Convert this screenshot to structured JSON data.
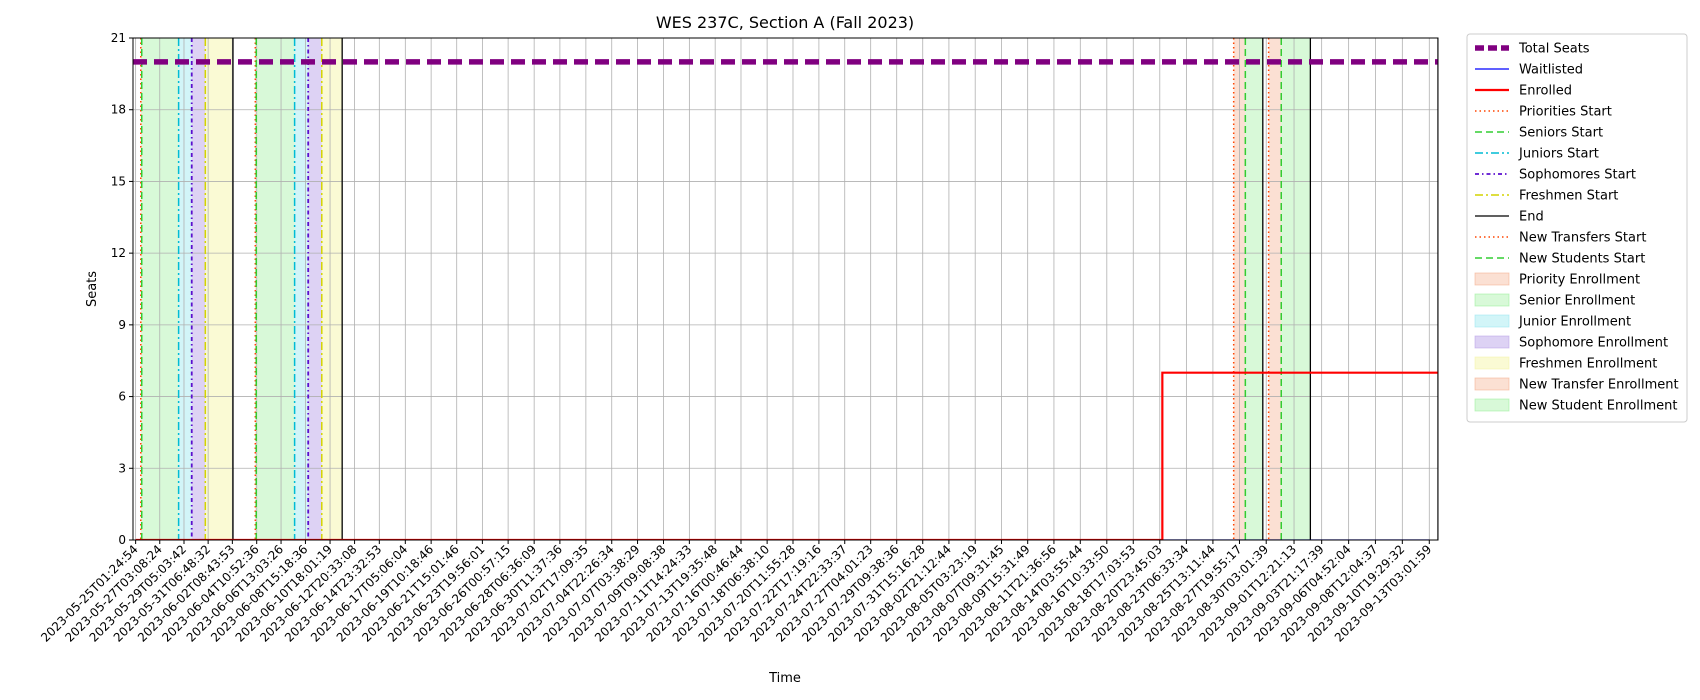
{
  "chart_data": {
    "type": "line",
    "title": "WES 237C, Section A (Fall 2023)",
    "xlabel": "Time",
    "ylabel": "Seats",
    "ylim": [
      0,
      21
    ],
    "yticks": [
      0,
      3,
      6,
      9,
      12,
      15,
      18,
      21
    ],
    "xlim": [
      "2023-05-24T20:00:00",
      "2023-09-13T21:00:00"
    ],
    "xticks": [
      "2023-05-25T01:24:54",
      "2023-05-27T03:08:24",
      "2023-05-29T05:03:42",
      "2023-05-31T06:48:32",
      "2023-06-02T08:43:53",
      "2023-06-04T10:52:36",
      "2023-06-06T13:03:26",
      "2023-06-08T15:18:36",
      "2023-06-10T18:01:19",
      "2023-06-12T20:33:08",
      "2023-06-14T23:32:53",
      "2023-06-17T05:06:04",
      "2023-06-19T10:18:46",
      "2023-06-21T15:01:46",
      "2023-06-23T19:56:01",
      "2023-06-26T00:57:15",
      "2023-06-28T06:36:09",
      "2023-06-30T11:37:36",
      "2023-07-02T17:09:35",
      "2023-07-04T22:26:34",
      "2023-07-07T03:38:29",
      "2023-07-09T09:08:38",
      "2023-07-11T14:24:33",
      "2023-07-13T19:35:48",
      "2023-07-16T00:46:44",
      "2023-07-18T06:38:10",
      "2023-07-20T11:55:28",
      "2023-07-22T17:19:16",
      "2023-07-24T22:33:37",
      "2023-07-27T04:01:23",
      "2023-07-29T09:38:36",
      "2023-07-31T15:16:28",
      "2023-08-02T21:12:44",
      "2023-08-05T03:23:19",
      "2023-08-07T09:31:45",
      "2023-08-09T15:31:49",
      "2023-08-11T21:36:56",
      "2023-08-14T03:55:44",
      "2023-08-16T10:33:50",
      "2023-08-18T17:03:53",
      "2023-08-20T23:45:03",
      "2023-08-23T06:33:34",
      "2023-08-25T13:11:44",
      "2023-08-27T19:55:17",
      "2023-08-30T03:01:39",
      "2023-09-01T12:21:13",
      "2023-09-03T21:17:39",
      "2023-09-06T04:52:04",
      "2023-09-08T12:04:37",
      "2023-09-10T19:29:32",
      "2023-09-13T03:01:59"
    ],
    "grid": true,
    "legend_position": "outside-right",
    "series": [
      {
        "name": "Total Seats",
        "color": "#800080",
        "style": "dashed",
        "x": [
          "2023-05-24T20:00:00",
          "2023-09-13T21:00:00"
        ],
        "y": [
          20,
          20
        ]
      },
      {
        "name": "Waitlisted",
        "color": "#0000ff",
        "style": "solid",
        "x": [
          "2023-05-25T01:24:54",
          "2023-09-13T03:01:59"
        ],
        "y": [
          0,
          0
        ]
      },
      {
        "name": "Enrolled",
        "color": "#ff0000",
        "style": "solid",
        "x": [
          "2023-05-25T01:24:54",
          "2023-08-21T05:00:00",
          "2023-08-21T05:00:00",
          "2023-09-13T21:00:00"
        ],
        "y": [
          0,
          0,
          7,
          7
        ]
      }
    ],
    "vlines": [
      {
        "name": "Priorities Start",
        "color": "#ff4500",
        "style": "dotted",
        "x": [
          "2023-05-25T12:00:00",
          "2023-06-04T08:00:00",
          "2023-08-27T08:00:00"
        ]
      },
      {
        "name": "Seniors Start",
        "color": "#32cd32",
        "style": "dashed",
        "x": [
          "2023-05-25T14:00:00",
          "2023-06-04T10:00:00",
          "2023-08-28T08:00:00"
        ]
      },
      {
        "name": "Juniors Start",
        "color": "#00bcd4",
        "style": "dashdot",
        "x": [
          "2023-05-28T18:00:00",
          "2023-06-07T17:00:00"
        ]
      },
      {
        "name": "Sophomores Start",
        "color": "#5b0fcf",
        "style": "dashdot-dense",
        "x": [
          "2023-05-29T21:00:00",
          "2023-06-08T21:00:00"
        ]
      },
      {
        "name": "Freshmen Start",
        "color": "#d4d400",
        "style": "dashdot",
        "x": [
          "2023-05-31T01:00:00",
          "2023-06-10T01:00:00"
        ]
      },
      {
        "name": "End",
        "color": "#000000",
        "style": "solid",
        "x": [
          "2023-06-02T10:00:00",
          "2023-06-11T19:00:00",
          "2023-08-29T20:00:00",
          "2023-09-02T22:00:00",
          "2023-09-13T21:00:00"
        ]
      },
      {
        "name": "New Transfers Start",
        "color": "#ff4500",
        "style": "dotted",
        "x": [
          "2023-08-30T08:00:00"
        ]
      },
      {
        "name": "New Students Start",
        "color": "#32cd32",
        "style": "dashed",
        "x": [
          "2023-08-31T10:00:00"
        ]
      }
    ],
    "spans": [
      {
        "name": "Priority Enrollment",
        "color": "#f4a582",
        "alpha": 0.35,
        "ranges": [
          [
            "2023-05-25T12:00:00",
            "2023-05-25T14:00:00"
          ],
          [
            "2023-06-04T08:00:00",
            "2023-06-04T10:00:00"
          ],
          [
            "2023-08-27T08:00:00",
            "2023-08-28T08:00:00"
          ]
        ]
      },
      {
        "name": "Senior Enrollment",
        "color": "#90ee90",
        "alpha": 0.35,
        "ranges": [
          [
            "2023-05-25T14:00:00",
            "2023-05-28T18:00:00"
          ],
          [
            "2023-06-04T10:00:00",
            "2023-06-07T17:00:00"
          ],
          [
            "2023-08-28T08:00:00",
            "2023-08-29T20:00:00"
          ]
        ]
      },
      {
        "name": "Junior Enrollment",
        "color": "#8ee5ee",
        "alpha": 0.4,
        "ranges": [
          [
            "2023-05-28T18:00:00",
            "2023-05-29T21:00:00"
          ],
          [
            "2023-06-07T17:00:00",
            "2023-06-08T21:00:00"
          ]
        ]
      },
      {
        "name": "Sophomore Enrollment",
        "color": "#b49be6",
        "alpha": 0.45,
        "ranges": [
          [
            "2023-05-29T21:00:00",
            "2023-05-31T01:00:00"
          ],
          [
            "2023-06-08T21:00:00",
            "2023-06-10T01:00:00"
          ]
        ]
      },
      {
        "name": "Freshmen Enrollment",
        "color": "#f5f5a0",
        "alpha": 0.45,
        "ranges": [
          [
            "2023-05-31T01:00:00",
            "2023-06-02T10:00:00"
          ],
          [
            "2023-06-10T01:00:00",
            "2023-06-11T19:00:00"
          ]
        ]
      },
      {
        "name": "New Transfer Enrollment",
        "color": "#f4a582",
        "alpha": 0.35,
        "ranges": [
          [
            "2023-08-30T08:00:00",
            "2023-08-31T10:00:00"
          ]
        ]
      },
      {
        "name": "New Student Enrollment",
        "color": "#90ee90",
        "alpha": 0.35,
        "ranges": [
          [
            "2023-08-31T10:00:00",
            "2023-09-02T22:00:00"
          ]
        ]
      }
    ],
    "legend": [
      {
        "label": "Total Seats",
        "kind": "line",
        "color": "#800080",
        "style": "dashed-thick"
      },
      {
        "label": "Waitlisted",
        "kind": "line",
        "color": "#0000ff",
        "style": "solid"
      },
      {
        "label": "Enrolled",
        "kind": "line",
        "color": "#ff0000",
        "style": "solid-thick"
      },
      {
        "label": "Priorities Start",
        "kind": "line",
        "color": "#ff4500",
        "style": "dotted"
      },
      {
        "label": "Seniors Start",
        "kind": "line",
        "color": "#32cd32",
        "style": "dashed"
      },
      {
        "label": "Juniors Start",
        "kind": "line",
        "color": "#00bcd4",
        "style": "dashdot"
      },
      {
        "label": "Sophomores Start",
        "kind": "line",
        "color": "#5b0fcf",
        "style": "dashdot-dense"
      },
      {
        "label": "Freshmen Start",
        "kind": "line",
        "color": "#d4d400",
        "style": "dashdot"
      },
      {
        "label": "End",
        "kind": "line",
        "color": "#000000",
        "style": "solid"
      },
      {
        "label": "New Transfers Start",
        "kind": "line",
        "color": "#ff4500",
        "style": "dotted"
      },
      {
        "label": "New Students Start",
        "kind": "line",
        "color": "#32cd32",
        "style": "dashed"
      },
      {
        "label": "Priority Enrollment",
        "kind": "patch",
        "color": "#f4a582",
        "alpha": 0.35
      },
      {
        "label": "Senior Enrollment",
        "kind": "patch",
        "color": "#90ee90",
        "alpha": 0.35
      },
      {
        "label": "Junior Enrollment",
        "kind": "patch",
        "color": "#8ee5ee",
        "alpha": 0.4
      },
      {
        "label": "Sophomore Enrollment",
        "kind": "patch",
        "color": "#b49be6",
        "alpha": 0.45
      },
      {
        "label": "Freshmen Enrollment",
        "kind": "patch",
        "color": "#f5f5a0",
        "alpha": 0.45
      },
      {
        "label": "New Transfer Enrollment",
        "kind": "patch",
        "color": "#f4a582",
        "alpha": 0.35
      },
      {
        "label": "New Student Enrollment",
        "kind": "patch",
        "color": "#90ee90",
        "alpha": 0.35
      }
    ]
  }
}
